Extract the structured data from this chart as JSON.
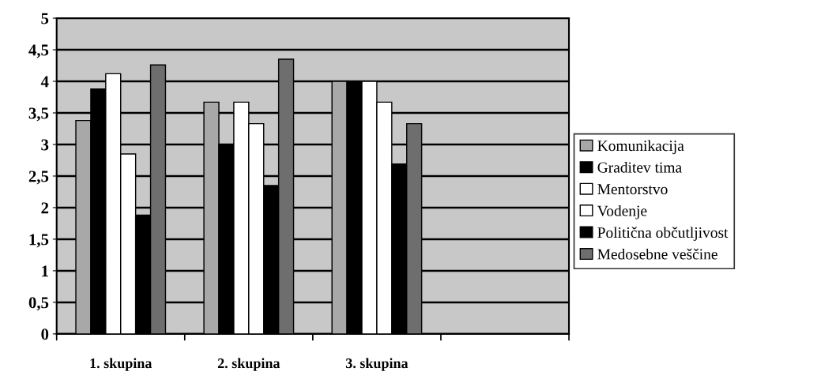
{
  "chart_data": {
    "type": "bar",
    "categories": [
      "1. skupina",
      "2. skupina",
      "3. skupina",
      null
    ],
    "series": [
      {
        "name": "Komunikacija",
        "color": "#a8a8a8",
        "values": [
          3.38,
          3.67,
          4.0,
          null
        ]
      },
      {
        "name": "Graditev tima",
        "color": "#000000",
        "values": [
          3.88,
          3.0,
          4.0,
          null
        ]
      },
      {
        "name": "Mentorstvo",
        "color": "#ffffff",
        "values": [
          4.12,
          3.67,
          4.0,
          null
        ]
      },
      {
        "name": "Vodenje",
        "color": "#ffffff",
        "values": [
          2.85,
          3.33,
          3.67,
          null
        ]
      },
      {
        "name": "Politična občutljivost",
        "color": "#000000",
        "values": [
          1.88,
          2.35,
          2.69,
          null
        ]
      },
      {
        "name": "Medosebne veščine",
        "color": "#6e6e6e",
        "values": [
          4.26,
          4.35,
          3.33,
          null
        ]
      }
    ],
    "ylim": [
      0,
      5
    ],
    "yticks": [
      {
        "value": 0,
        "label": "0"
      },
      {
        "value": 0.5,
        "label": "0,5"
      },
      {
        "value": 1,
        "label": "1"
      },
      {
        "value": 1.5,
        "label": "1,5"
      },
      {
        "value": 2,
        "label": "2"
      },
      {
        "value": 2.5,
        "label": "2,5"
      },
      {
        "value": 3,
        "label": "3"
      },
      {
        "value": 3.5,
        "label": "3,5"
      },
      {
        "value": 4,
        "label": "4"
      },
      {
        "value": 4.5,
        "label": "4,5"
      },
      {
        "value": 5,
        "label": "5"
      }
    ],
    "grid": "y",
    "legend": "right"
  }
}
